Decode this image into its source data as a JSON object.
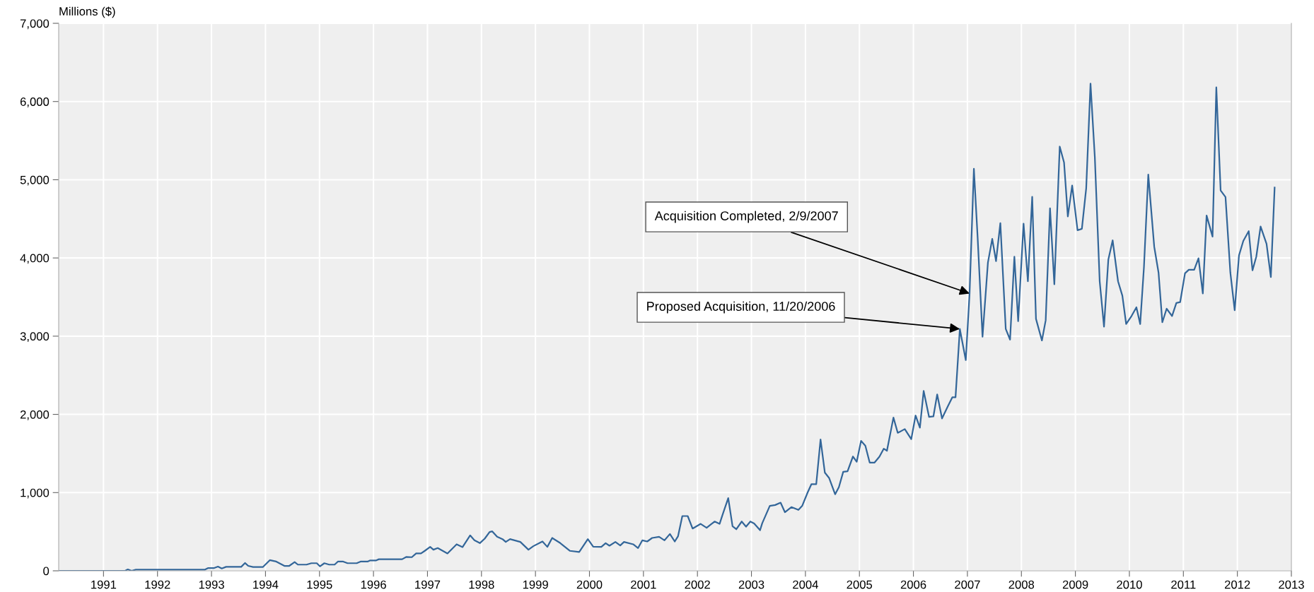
{
  "chart_data": {
    "type": "line",
    "ylabel": "Millions ($)",
    "xlim": [
      1990.17,
      2013
    ],
    "xticks": [
      1991,
      1992,
      1993,
      1994,
      1995,
      1996,
      1997,
      1998,
      1999,
      2000,
      2001,
      2002,
      2003,
      2004,
      2005,
      2006,
      2007,
      2008,
      2009,
      2010,
      2011,
      2012,
      2013
    ],
    "ylim": [
      0,
      7000
    ],
    "yticks": [
      0,
      {
        "value": 1000,
        "label": "1,000"
      },
      {
        "value": 2000,
        "label": "2,000"
      },
      {
        "value": 3000,
        "label": "3,000"
      },
      {
        "value": 4000,
        "label": "4,000"
      },
      {
        "value": 5000,
        "label": "5,000"
      },
      {
        "value": 6000,
        "label": "6,000"
      },
      {
        "value": 7000,
        "label": "7,000"
      }
    ],
    "grid": true,
    "marker": "none",
    "line_style": "solid",
    "x": [
      1990.18,
      1991.4,
      1991.45,
      1991.52,
      1991.6,
      1992.88,
      1992.94,
      1993.05,
      1993.12,
      1993.19,
      1993.27,
      1993.55,
      1993.62,
      1993.68,
      1993.77,
      1993.95,
      1994.08,
      1994.2,
      1994.35,
      1994.44,
      1994.54,
      1994.6,
      1994.76,
      1994.85,
      1994.95,
      1995.01,
      1995.09,
      1995.18,
      1995.28,
      1995.34,
      1995.44,
      1995.52,
      1995.69,
      1995.76,
      1995.89,
      1995.94,
      1996.05,
      1996.1,
      1996.53,
      1996.61,
      1996.71,
      1996.79,
      1996.88,
      1996.95,
      1997.05,
      1997.11,
      1997.19,
      1997.37,
      1997.54,
      1997.65,
      1997.79,
      1997.87,
      1997.97,
      1998.06,
      1998.15,
      1998.2,
      1998.29,
      1998.39,
      1998.45,
      1998.53,
      1998.72,
      1998.87,
      1998.96,
      1999.13,
      1999.22,
      1999.31,
      1999.46,
      1999.64,
      1999.81,
      1999.97,
      2000.07,
      2000.22,
      2000.3,
      2000.37,
      2000.48,
      2000.57,
      2000.64,
      2000.81,
      2000.9,
      2000.98,
      2001.07,
      2001.16,
      2001.29,
      2001.39,
      2001.49,
      2001.58,
      2001.64,
      2001.72,
      2001.82,
      2001.91,
      2002.06,
      2002.17,
      2002.26,
      2002.32,
      2002.41,
      2002.46,
      2002.57,
      2002.65,
      2002.72,
      2002.82,
      2002.9,
      2002.98,
      2003.05,
      2003.16,
      2003.2,
      2003.34,
      2003.44,
      2003.54,
      2003.62,
      2003.74,
      2003.87,
      2003.94,
      2004.04,
      2004.11,
      2004.2,
      2004.28,
      2004.36,
      2004.44,
      2004.55,
      2004.62,
      2004.7,
      2004.78,
      2004.88,
      2004.95,
      2005.03,
      2005.11,
      2005.19,
      2005.28,
      2005.37,
      2005.45,
      2005.51,
      2005.63,
      2005.71,
      2005.84,
      2005.96,
      2006.04,
      2006.12,
      2006.19,
      2006.29,
      2006.37,
      2006.44,
      2006.53,
      2006.64,
      2006.72,
      2006.78,
      2006.86,
      2006.97,
      2007.04,
      2007.12,
      2007.19,
      2007.28,
      2007.38,
      2007.46,
      2007.53,
      2007.61,
      2007.71,
      2007.79,
      2007.87,
      2007.94,
      2008.04,
      2008.12,
      2008.2,
      2008.27,
      2008.38,
      2008.45,
      2008.53,
      2008.61,
      2008.71,
      2008.79,
      2008.86,
      2008.94,
      2009.04,
      2009.12,
      2009.2,
      2009.28,
      2009.36,
      2009.45,
      2009.53,
      2009.61,
      2009.69,
      2009.79,
      2009.87,
      2009.94,
      2010.04,
      2010.13,
      2010.2,
      2010.27,
      2010.35,
      2010.46,
      2010.54,
      2010.61,
      2010.69,
      2010.79,
      2010.87,
      2010.94,
      2011.03,
      2011.1,
      2011.2,
      2011.28,
      2011.36,
      2011.43,
      2011.54,
      2011.61,
      2011.69,
      2011.78,
      2011.87,
      2011.95,
      2012.03,
      2012.11,
      2012.21,
      2012.28,
      2012.35,
      2012.43,
      2012.54,
      2012.62,
      2012.69
    ],
    "series": [
      {
        "color": "#336699",
        "values": [
          0,
          0,
          18,
          0,
          15,
          15,
          36,
          36,
          54,
          30,
          51,
          51,
          100,
          63,
          48,
          48,
          136,
          118,
          63,
          63,
          112,
          79,
          79,
          97,
          97,
          57,
          97,
          79,
          79,
          118,
          118,
          97,
          97,
          118,
          118,
          133,
          133,
          148,
          148,
          178,
          174,
          222,
          222,
          255,
          306,
          270,
          291,
          222,
          339,
          303,
          453,
          390,
          354,
          411,
          495,
          504,
          435,
          405,
          369,
          405,
          369,
          270,
          315,
          375,
          306,
          420,
          354,
          255,
          240,
          405,
          309,
          306,
          354,
          321,
          369,
          324,
          369,
          339,
          291,
          390,
          375,
          420,
          435,
          390,
          471,
          375,
          441,
          700,
          700,
          540,
          600,
          550,
          600,
          630,
          600,
          705,
          930,
          570,
          531,
          630,
          564,
          630,
          606,
          519,
          609,
          830,
          841,
          871,
          749,
          815,
          779,
          830,
          1000,
          1107,
          1107,
          1679,
          1255,
          1185,
          978,
          1070,
          1266,
          1273,
          1461,
          1395,
          1661,
          1598,
          1384,
          1384,
          1458,
          1561,
          1535,
          1959,
          1764,
          1812,
          1683,
          1985,
          1830,
          2299,
          1967,
          1974,
          2255,
          1948,
          2107,
          2218,
          2218,
          3092,
          2694,
          3546,
          5140,
          4255,
          2993,
          3941,
          4244,
          3959,
          4446,
          3092,
          2956,
          4015,
          3192,
          4439,
          3701,
          4782,
          3221,
          2945,
          3203,
          4635,
          3664,
          5424,
          5221,
          4531,
          4926,
          4354,
          4373,
          4889,
          6229,
          5288,
          3701,
          3122,
          3978,
          4225,
          3701,
          3517,
          3155,
          3258,
          3369,
          3155,
          3886,
          5066,
          4144,
          3812,
          3177,
          3351,
          3258,
          3424,
          3435,
          3804,
          3849,
          3849,
          3996,
          3546,
          4542,
          4273,
          6181,
          4863,
          4779,
          3812,
          3332,
          4033,
          4218,
          4343,
          3841,
          4015,
          4402,
          4181,
          3756,
          4900
        ]
      }
    ],
    "annotations": [
      {
        "text": "Acquisition Completed, 2/9/2007",
        "x": 2007.04,
        "y": 3546
      },
      {
        "text": "Proposed Acquisition, 11/20/2006",
        "x": 2006.86,
        "y": 3092
      }
    ]
  }
}
